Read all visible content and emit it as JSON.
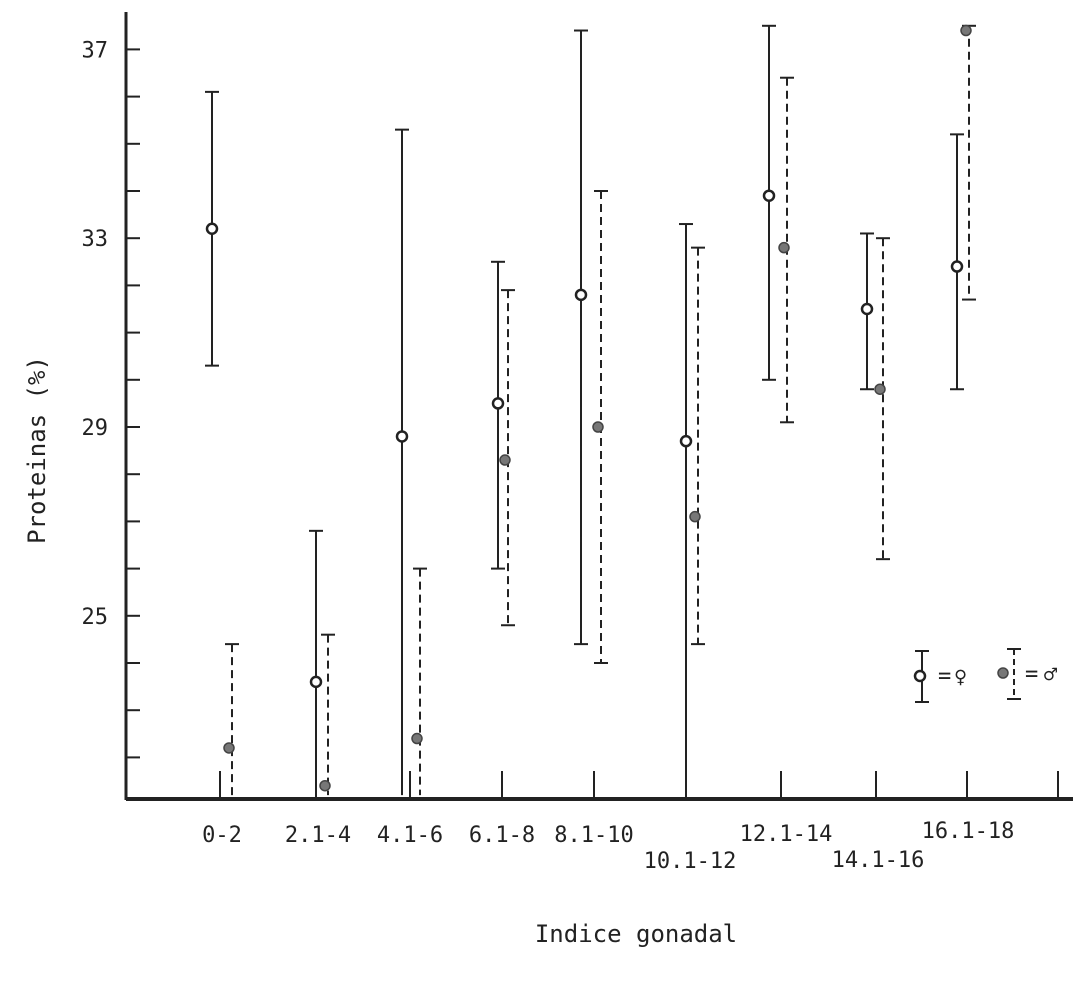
{
  "chart_data": {
    "type": "scatter",
    "title": "",
    "xlabel": "Indice gonadal",
    "ylabel": "Proteinas (%)",
    "ylim": [
      21.0,
      37.5
    ],
    "y_ticks": [
      22,
      23,
      24,
      25,
      26,
      27,
      28,
      29,
      30,
      31,
      32,
      33,
      34,
      35,
      36,
      37
    ],
    "y_tick_labels": [
      {
        "value": 25,
        "label": "25"
      },
      {
        "value": 29,
        "label": "29"
      },
      {
        "value": 33,
        "label": "33"
      },
      {
        "value": 37,
        "label": "37"
      }
    ],
    "categories": [
      "0-2",
      "2.1-4",
      "4.1-6",
      "6.1-8",
      "8.1-10",
      "10.1-12",
      "12.1-14",
      "14.1-16",
      "16.1-18"
    ],
    "grid": false,
    "legend_position": "bottom-right",
    "legend": {
      "female_symbol": "♀",
      "male_symbol": "♂",
      "equals": "="
    },
    "series": [
      {
        "marker": "open-circle",
        "line": "solid",
        "mean": [
          33.2,
          23.6,
          28.8,
          29.5,
          31.8,
          28.7,
          33.9,
          31.5,
          32.4
        ],
        "upper": [
          36.1,
          26.8,
          35.3,
          32.5,
          37.4,
          33.3,
          37.5,
          33.1,
          35.2
        ],
        "lower": [
          30.3,
          21.2,
          21.2,
          26.0,
          24.4,
          21.2,
          30.0,
          29.8,
          29.8
        ]
      },
      {
        "marker": "filled-circle",
        "line": "dashed",
        "mean": [
          22.2,
          21.4,
          22.4,
          28.3,
          29.0,
          27.1,
          32.8,
          29.8,
          37.4
        ],
        "upper": [
          24.4,
          24.6,
          26.0,
          31.9,
          34.0,
          32.8,
          36.4,
          33.0,
          37.5
        ],
        "lower": [
          21.2,
          21.2,
          21.2,
          24.8,
          24.0,
          24.4,
          29.1,
          26.2,
          31.7
        ]
      }
    ]
  }
}
